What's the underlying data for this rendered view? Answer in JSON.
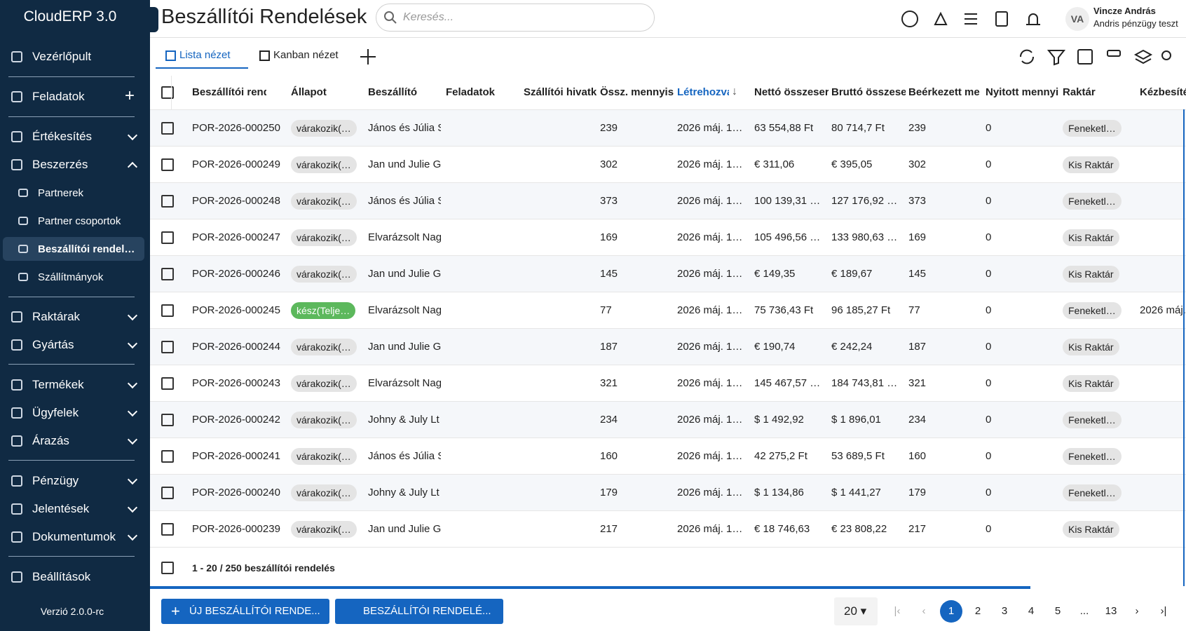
{
  "sidebar": {
    "brand": "CloudERP 3.0",
    "nav": [
      "Vezérlőpult",
      "Feladatok",
      "Értékesítés",
      "Beszerzés",
      "Partnerek",
      "Partner csoportok",
      "Beszállítói rendel…",
      "Szállítmányok",
      "Raktárak",
      "Gyártás",
      "Termékek",
      "Ügyfelek",
      "Árazás",
      "Pénzügy",
      "Jelentések",
      "Dokumentumok",
      "Beállítások"
    ],
    "version": "Verzió 2.0.0-rc"
  },
  "header": {
    "title": "Beszállítói Rendelések",
    "search": "Keresés...",
    "avatar": "VA",
    "user": "Vincze András",
    "role": "Andris pénzügy teszt"
  },
  "tabs": [
    "Lista nézet",
    "Kanban nézet"
  ],
  "table": {
    "columns": [
      "Beszállítói rendelés",
      "Állapot",
      "Beszállító",
      "Feladatok",
      "Szállítói hivatk",
      "Össz. mennyis",
      "Létrehozva",
      "Nettó összeser",
      "Bruttó összese",
      "Beérkezett me",
      "Nyitott mennyi",
      "Raktár",
      "Kézbesíté"
    ],
    "rows": [
      {
        "id": "POR-2026-000250",
        "status": "várakozik(…",
        "supplier": "János és Júlia S",
        "qty": 239,
        "created": "2026 máj. 1…",
        "net": "63 554,88 Ft",
        "gross": "80 714,7 Ft",
        "received": 239,
        "open": 0,
        "warehouse": "Feneketl…"
      },
      {
        "id": "POR-2026-000249",
        "status": "várakozik(…",
        "supplier": "Jan und Julie G",
        "qty": 302,
        "created": "2026 máj. 1…",
        "net": "€ 311,06",
        "gross": "€ 395,05",
        "received": 302,
        "open": 0,
        "warehouse": "Kis Raktár"
      },
      {
        "id": "POR-2026-000248",
        "status": "várakozik(…",
        "supplier": "János és Júlia S",
        "qty": 373,
        "created": "2026 máj. 1…",
        "net": "100 139,31 …",
        "gross": "127 176,92 …",
        "received": 373,
        "open": 0,
        "warehouse": "Feneketl…"
      },
      {
        "id": "POR-2026-000247",
        "status": "várakozik(…",
        "supplier": "Elvarázsolt Nag",
        "qty": 169,
        "created": "2026 máj. 1…",
        "net": "105 496,56 …",
        "gross": "133 980,63 …",
        "received": 169,
        "open": 0,
        "warehouse": "Kis Raktár"
      },
      {
        "id": "POR-2026-000246",
        "status": "várakozik(…",
        "supplier": "Jan und Julie G",
        "qty": 145,
        "created": "2026 máj. 1…",
        "net": "€ 149,35",
        "gross": "€ 189,67",
        "received": 145,
        "open": 0,
        "warehouse": "Kis Raktár"
      },
      {
        "id": "POR-2026-000245",
        "status": "kész(Telje…",
        "supplier": "Elvarázsolt Nag",
        "qty": 77,
        "created": "2026 máj. 1…",
        "net": "75 736,43 Ft",
        "gross": "96 185,27 Ft",
        "received": 77,
        "open": 0,
        "warehouse": "Feneketl…",
        "delivered": "2026 máj."
      },
      {
        "id": "POR-2026-000244",
        "status": "várakozik(…",
        "supplier": "Jan und Julie G",
        "qty": 187,
        "created": "2026 máj. 1…",
        "net": "€ 190,74",
        "gross": "€ 242,24",
        "received": 187,
        "open": 0,
        "warehouse": "Kis Raktár"
      },
      {
        "id": "POR-2026-000243",
        "status": "várakozik(…",
        "supplier": "Elvarázsolt Nag",
        "qty": 321,
        "created": "2026 máj. 1…",
        "net": "145 467,57 …",
        "gross": "184 743,81 …",
        "received": 321,
        "open": 0,
        "warehouse": "Kis Raktár"
      },
      {
        "id": "POR-2026-000242",
        "status": "várakozik(…",
        "supplier": "Johny & July Lt",
        "qty": 234,
        "created": "2026 máj. 1…",
        "net": "$ 1 492,92",
        "gross": "$ 1 896,01",
        "received": 234,
        "open": 0,
        "warehouse": "Feneketl…"
      },
      {
        "id": "POR-2026-000241",
        "status": "várakozik(…",
        "supplier": "János és Júlia S",
        "qty": 160,
        "created": "2026 máj. 1…",
        "net": "42 275,2 Ft",
        "gross": "53 689,5 Ft",
        "received": 160,
        "open": 0,
        "warehouse": "Feneketl…"
      },
      {
        "id": "POR-2026-000240",
        "status": "várakozik(…",
        "supplier": "Johny & July Lt",
        "qty": 179,
        "created": "2026 máj. 1…",
        "net": "$ 1 134,86",
        "gross": "$ 1 441,27",
        "received": 179,
        "open": 0,
        "warehouse": "Feneketl…"
      },
      {
        "id": "POR-2026-000239",
        "status": "várakozik(…",
        "supplier": "Jan und Julie G",
        "qty": 217,
        "created": "2026 máj. 1…",
        "net": "€ 18 746,63",
        "gross": "€ 23 808,22",
        "received": 217,
        "open": 0,
        "warehouse": "Kis Raktár"
      }
    ],
    "summary": "1 - 20 / 250 beszállítói rendelés"
  },
  "buttons": [
    "ÚJ BESZÁLLÍTÓI RENDE...",
    "BESZÁLLÍTÓI RENDELÉ..."
  ],
  "pagination": {
    "page_size": 20,
    "pages": [
      1,
      2,
      3,
      4,
      5,
      "...",
      13
    ]
  }
}
